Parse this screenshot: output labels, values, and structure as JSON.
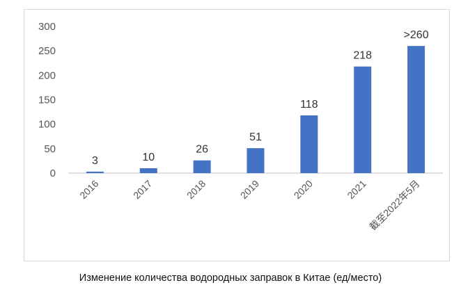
{
  "caption": "Изменение количества водородных заправок в Китае (ед/место)",
  "colors": {
    "bar": "#4472c4",
    "axis": "#bfbfbf",
    "text": "#555555"
  },
  "chart_data": {
    "type": "bar",
    "categories": [
      "2016",
      "2017",
      "2018",
      "2019",
      "2020",
      "2021",
      "截至2022年5月"
    ],
    "values": [
      3,
      10,
      26,
      51,
      118,
      218,
      260
    ],
    "data_labels": [
      "3",
      "10",
      "26",
      "51",
      "118",
      "218",
      ">260"
    ],
    "yticks": [
      "0",
      "50",
      "100",
      "150",
      "200",
      "250",
      "300"
    ],
    "ylim": [
      0,
      300
    ],
    "grid": false,
    "legend": "none",
    "title": "",
    "xlabel": "",
    "ylabel": ""
  }
}
